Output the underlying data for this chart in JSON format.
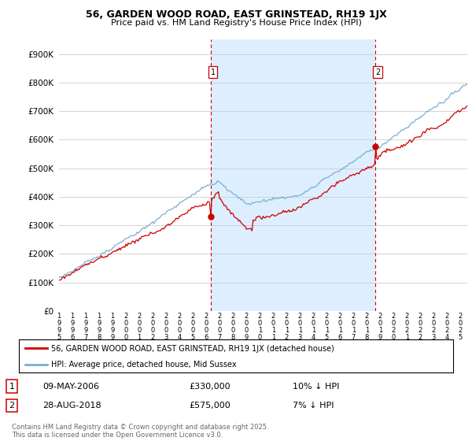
{
  "title": "56, GARDEN WOOD ROAD, EAST GRINSTEAD, RH19 1JX",
  "subtitle": "Price paid vs. HM Land Registry's House Price Index (HPI)",
  "yticks": [
    0,
    100000,
    200000,
    300000,
    400000,
    500000,
    600000,
    700000,
    800000,
    900000
  ],
  "ytick_labels": [
    "£0",
    "£100K",
    "£200K",
    "£300K",
    "£400K",
    "£500K",
    "£600K",
    "£700K",
    "£800K",
    "£900K"
  ],
  "ylim": [
    0,
    950000
  ],
  "xlim_left": 1995.0,
  "xlim_right": 2025.5,
  "sale1_x": 2006.35,
  "sale1_price": 330000,
  "sale1_label": "1",
  "sale1_text": "09-MAY-2006",
  "sale1_amount": "£330,000",
  "sale1_hpi_diff": "10% ↓ HPI",
  "sale2_x": 2018.65,
  "sale2_price": 575000,
  "sale2_label": "2",
  "sale2_text": "28-AUG-2018",
  "sale2_amount": "£575,000",
  "sale2_hpi_diff": "7% ↓ HPI",
  "line_price_color": "#cc0000",
  "line_hpi_color": "#7ab0d4",
  "shade_color": "#ddeeff",
  "vline_color": "#cc0000",
  "grid_color": "#cccccc",
  "bg_color": "#ffffff",
  "legend_label1": "56, GARDEN WOOD ROAD, EAST GRINSTEAD, RH19 1JX (detached house)",
  "legend_label2": "HPI: Average price, detached house, Mid Sussex",
  "footer": "Contains HM Land Registry data © Crown copyright and database right 2025.\nThis data is licensed under the Open Government Licence v3.0."
}
